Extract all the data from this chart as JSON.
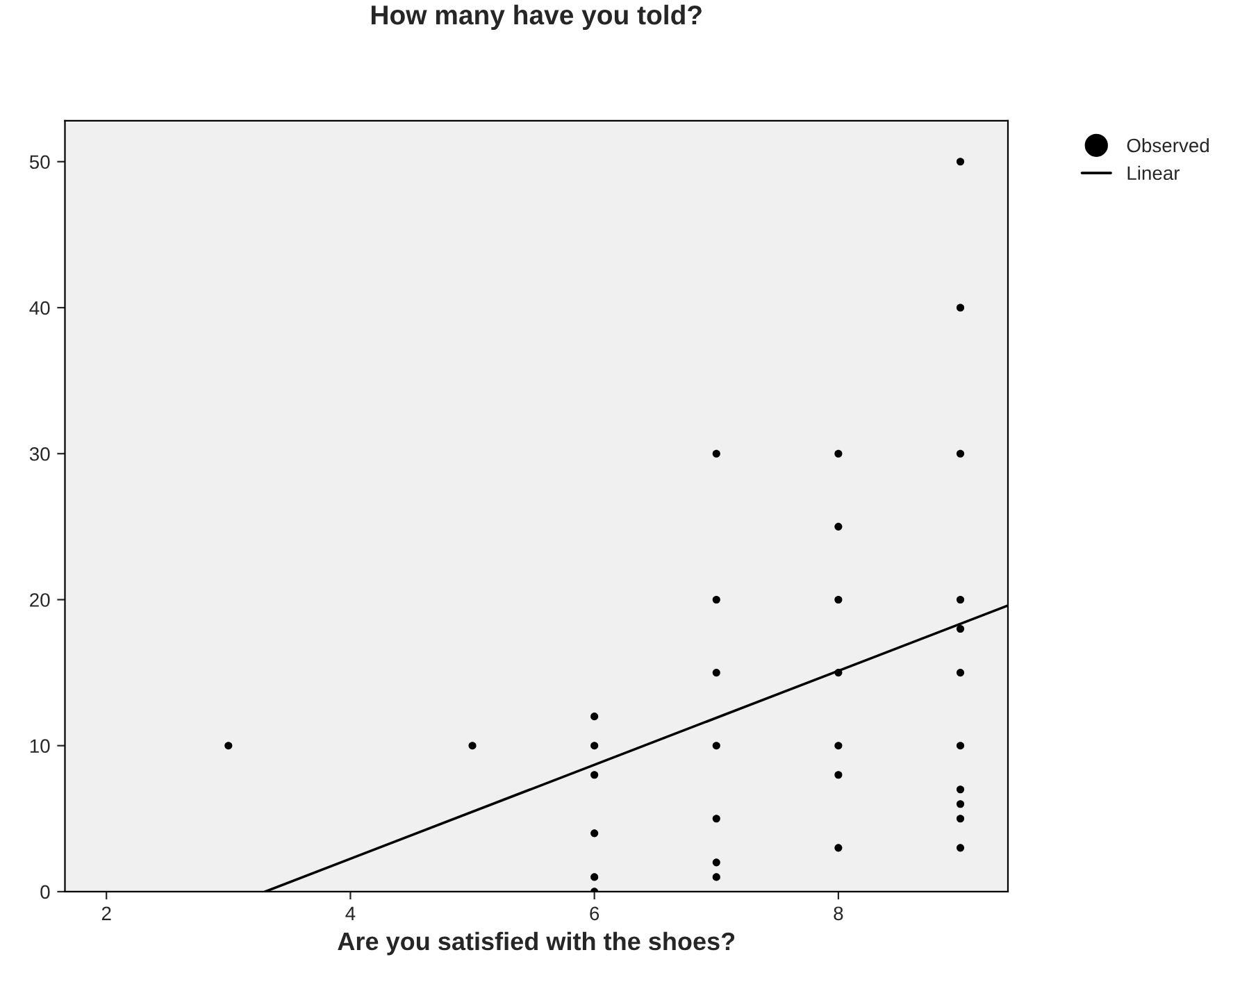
{
  "chart_data": {
    "type": "scatter",
    "title": "How many have you told?",
    "xlabel": "Are you satisfied with the shoes?",
    "series": [
      {
        "name": "Observed",
        "marker": "circle",
        "color": "#000000",
        "x": [
          3,
          5,
          6,
          6,
          6,
          6,
          6,
          6,
          7,
          7,
          7,
          7,
          7,
          7,
          7,
          8,
          8,
          8,
          8,
          8,
          8,
          8,
          9,
          9,
          9,
          9,
          9,
          9,
          9,
          9,
          9,
          9,
          9
        ],
        "values": [
          10,
          10,
          12,
          10,
          8,
          4,
          1,
          0,
          30,
          20,
          15,
          10,
          5,
          2,
          1,
          30,
          25,
          20,
          15,
          10,
          8,
          3,
          50,
          40,
          30,
          20,
          18,
          15,
          10,
          7,
          6,
          5,
          3
        ]
      },
      {
        "name": "Linear",
        "type": "line",
        "marker": "none",
        "color": "#000000",
        "x": [
          3.3,
          9.39
        ],
        "values": [
          0,
          19.6
        ]
      }
    ],
    "xlim": [
      1.66,
      9.39
    ],
    "ylim": [
      0,
      52.8
    ],
    "xticks": [
      2,
      4,
      6,
      8
    ],
    "yticks": [
      0,
      10,
      20,
      30,
      40,
      50
    ],
    "grid": false,
    "legend": "top right"
  }
}
